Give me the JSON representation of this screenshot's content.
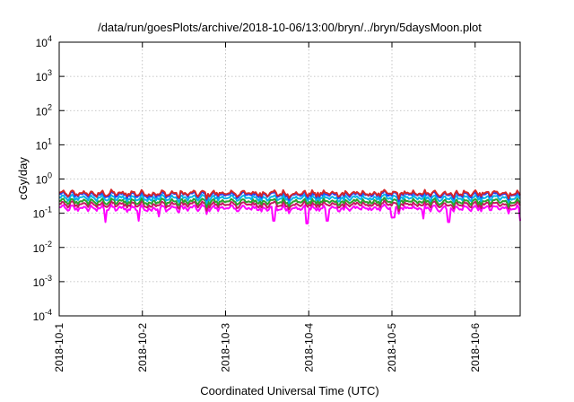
{
  "chart_data": {
    "type": "line",
    "title": "/data/run/goesPlots/archive/2018-10-06/13:00/bryn/../bryn/5daysMoon.plot",
    "xlabel": "Coordinated Universal Time (UTC)",
    "ylabel": "cGy/day",
    "y_scale": "log",
    "grid": true,
    "ylim": [
      0.0001,
      10000
    ],
    "y_ticks": [
      {
        "value": 0.0001,
        "base": "10",
        "exp": "-4"
      },
      {
        "value": 0.001,
        "base": "10",
        "exp": "-3"
      },
      {
        "value": 0.01,
        "base": "10",
        "exp": "-2"
      },
      {
        "value": 0.1,
        "base": "10",
        "exp": "-1"
      },
      {
        "value": 1,
        "base": "10",
        "exp": "0"
      },
      {
        "value": 10,
        "base": "10",
        "exp": "1"
      },
      {
        "value": 100,
        "base": "10",
        "exp": "2"
      },
      {
        "value": 1000,
        "base": "10",
        "exp": "3"
      },
      {
        "value": 10000,
        "base": "10",
        "exp": "4"
      }
    ],
    "xlim": [
      "2018-10-01 00:00",
      "2018-10-06 13:00"
    ],
    "x_ticks": [
      "2018-10-1",
      "2018-10-2",
      "2018-10-3",
      "2018-10-4",
      "2018-10-5",
      "2018-10-6"
    ],
    "series": [
      {
        "color": "#d62728",
        "base": 0.38,
        "values": []
      },
      {
        "color": "#1f3fff",
        "base": 0.35,
        "values": []
      },
      {
        "color": "#00b4e6",
        "base": 0.28,
        "values": []
      },
      {
        "color": "#2ca02c",
        "base": 0.22,
        "values": []
      },
      {
        "color": "#c21860",
        "base": 0.18,
        "values": []
      },
      {
        "color": "#ff00ff",
        "base": 0.14,
        "dips": [
          {
            "day": 0.56,
            "value": 0.055
          },
          {
            "day": 0.96,
            "value": 0.06
          },
          {
            "day": 1.2,
            "value": 0.08
          },
          {
            "day": 2.58,
            "value": 0.06
          },
          {
            "day": 2.98,
            "value": 0.05
          },
          {
            "day": 3.22,
            "value": 0.06
          },
          {
            "day": 4.0,
            "value": 0.075
          },
          {
            "day": 4.02,
            "value": 0.075
          },
          {
            "day": 4.38,
            "value": 0.07
          },
          {
            "day": 4.68,
            "value": 0.055
          },
          {
            "day": 5.55,
            "value": 0.06
          }
        ],
        "values": []
      }
    ]
  }
}
